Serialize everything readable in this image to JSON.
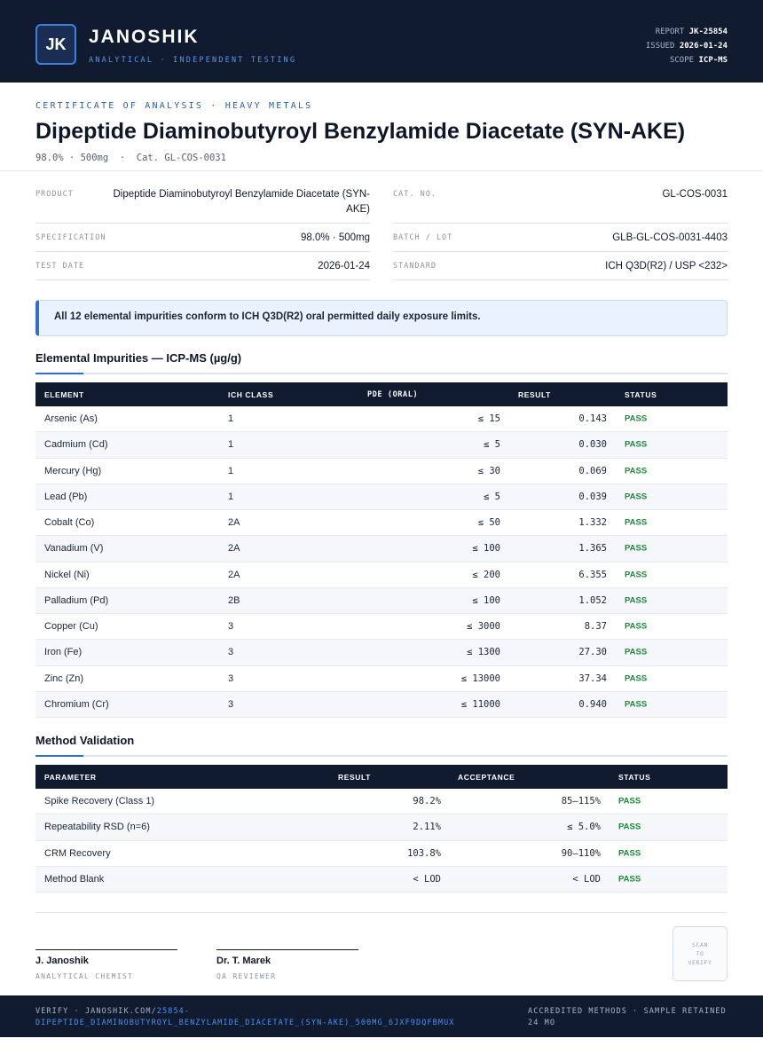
{
  "header": {
    "logo_text": "JK",
    "brand": "JANOSHIK",
    "tagline": "ANALYTICAL · INDEPENDENT TESTING",
    "report_label": "REPORT",
    "report_value": "JK-25854",
    "issued_label": "ISSUED",
    "issued_value": "2026-01-24",
    "scope_label": "SCOPE",
    "scope_value": "ICP-MS"
  },
  "doc": {
    "kicker": "CERTIFICATE OF ANALYSIS · HEAVY METALS",
    "title": "Dipeptide Diaminobutyroyl Benzylamide Diacetate (SYN-AKE)",
    "subline": "98.0% · 500mg  ·  Cat. GL-COS-0031"
  },
  "info": {
    "product_label": "PRODUCT",
    "product_value_1": "Dipeptide Diaminobutyroyl Benzylamide Diacetate (SYN-",
    "product_value_2": "AKE)",
    "spec_label": "SPECIFICATION",
    "spec_value": "98.0% · 500mg",
    "date_label": "TEST DATE",
    "date_value": "2026-01-24",
    "cat_label": "CAT. NO.",
    "cat_value": "GL-COS-0031",
    "batch_label": "BATCH / LOT",
    "batch_value": "GLB-GL-COS-0031-4403",
    "standard_label": "STANDARD",
    "standard_value": "ICH Q3D(R2) / USP <232>"
  },
  "callout": "All 12 elemental impurities conform to ICH Q3D(R2) oral permitted daily exposure limits.",
  "impurities": {
    "title": "Elemental Impurities — ICP-MS (µg/g)",
    "headers": {
      "element": "ELEMENT",
      "ich_class": "ICH CLASS",
      "pde": "PDE (ORAL)",
      "result": "RESULT",
      "status": "STATUS"
    },
    "rows": [
      {
        "element": "Arsenic (As)",
        "ich_class": "1",
        "pde": "≤ 15",
        "result": "0.143",
        "status": "PASS"
      },
      {
        "element": "Cadmium (Cd)",
        "ich_class": "1",
        "pde": "≤ 5",
        "result": "0.030",
        "status": "PASS"
      },
      {
        "element": "Mercury (Hg)",
        "ich_class": "1",
        "pde": "≤ 30",
        "result": "0.069",
        "status": "PASS"
      },
      {
        "element": "Lead (Pb)",
        "ich_class": "1",
        "pde": "≤ 5",
        "result": "0.039",
        "status": "PASS"
      },
      {
        "element": "Cobalt (Co)",
        "ich_class": "2A",
        "pde": "≤ 50",
        "result": "1.332",
        "status": "PASS"
      },
      {
        "element": "Vanadium (V)",
        "ich_class": "2A",
        "pde": "≤ 100",
        "result": "1.365",
        "status": "PASS"
      },
      {
        "element": "Nickel (Ni)",
        "ich_class": "2A",
        "pde": "≤ 200",
        "result": "6.355",
        "status": "PASS"
      },
      {
        "element": "Palladium (Pd)",
        "ich_class": "2B",
        "pde": "≤ 100",
        "result": "1.052",
        "status": "PASS"
      },
      {
        "element": "Copper (Cu)",
        "ich_class": "3",
        "pde": "≤ 3000",
        "result": "8.37",
        "status": "PASS"
      },
      {
        "element": "Iron (Fe)",
        "ich_class": "3",
        "pde": "≤ 1300",
        "result": "27.30",
        "status": "PASS"
      },
      {
        "element": "Zinc (Zn)",
        "ich_class": "3",
        "pde": "≤ 13000",
        "result": "37.34",
        "status": "PASS"
      },
      {
        "element": "Chromium (Cr)",
        "ich_class": "3",
        "pde": "≤ 11000",
        "result": "0.940",
        "status": "PASS"
      }
    ]
  },
  "validation": {
    "title": "Method Validation",
    "headers": {
      "parameter": "PARAMETER",
      "result": "RESULT",
      "acceptance": "ACCEPTANCE",
      "status": "STATUS"
    },
    "rows": [
      {
        "parameter": "Spike Recovery (Class 1)",
        "result": "98.2%",
        "acceptance": "85–115%",
        "status": "PASS"
      },
      {
        "parameter": "Repeatability RSD (n=6)",
        "result": "2.11%",
        "acceptance": "≤ 5.0%",
        "status": "PASS"
      },
      {
        "parameter": "CRM Recovery",
        "result": "103.8%",
        "acceptance": "90–110%",
        "status": "PASS"
      },
      {
        "parameter": "Method Blank",
        "result": "< LOD",
        "acceptance": "< LOD",
        "status": "PASS"
      }
    ]
  },
  "signatures": [
    {
      "name": "J. Janoshik",
      "role": "ANALYTICAL CHEMIST"
    },
    {
      "name": "Dr. T. Marek",
      "role": "QA REVIEWER"
    }
  ],
  "qr": {
    "line1": "SCAN",
    "line2": "TO",
    "line3": "VERIFY"
  },
  "footer": {
    "verify_prefix": "VERIFY · JANOSHIK.COM/",
    "verify_link": "25854-DIPEPTIDE_DIAMINOBUTYROYL_BENZYLAMIDE_DIACETATE_(SYN-AKE)_500MG_6JXF9DQFBMUX",
    "right_text": "ACCREDITED METHODS · SAMPLE RETAINED 24 MO"
  },
  "colors": {
    "navy": "#111b30",
    "accent_blue": "#2f6fd0",
    "pass_green": "#1e8a3c",
    "callout_bg": "#eaf2fd"
  }
}
